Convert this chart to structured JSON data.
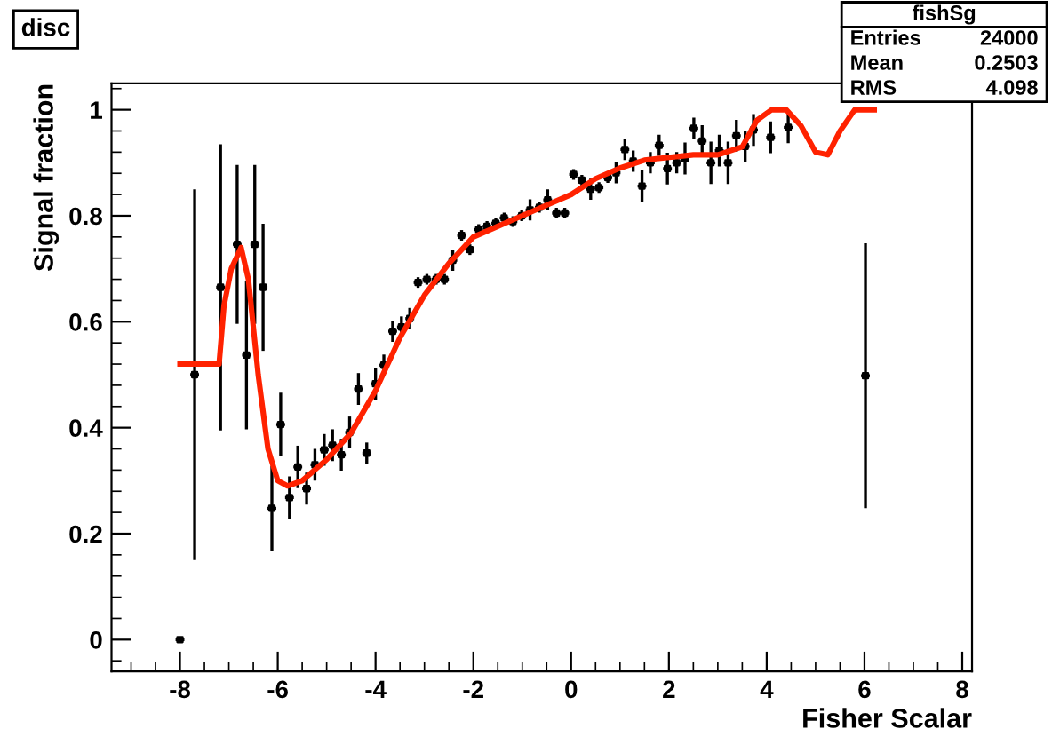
{
  "chart_data": {
    "type": "scatter",
    "title": "disc",
    "xlabel": "Fisher Scalar",
    "ylabel": "Signal fraction",
    "xlim": [
      -9.4,
      8.2
    ],
    "ylim": [
      -0.06,
      1.05
    ],
    "xticks": [
      -8,
      -6,
      -4,
      -2,
      0,
      2,
      4,
      6,
      8
    ],
    "yticks": [
      0,
      0.2,
      0.4,
      0.6,
      0.8,
      1
    ],
    "grid": false,
    "annotations": [
      "fishSg",
      "Entries 24000",
      "Mean 0.2503",
      "RMS 4.098"
    ],
    "series": [
      {
        "color": "#000000",
        "marker": "square",
        "x": [
          -8.0,
          -7.7,
          -7.17,
          -6.83,
          -6.64,
          -6.47,
          -6.3,
          -6.12,
          -5.94,
          -5.76,
          -5.59,
          -5.41,
          -5.24,
          -5.05,
          -4.88,
          -4.7,
          -4.53,
          -4.35,
          -4.18,
          -4.0,
          -3.83,
          -3.65,
          -3.47,
          -3.3,
          -3.13,
          -2.95,
          -2.76,
          -2.59,
          -2.42,
          -2.24,
          -2.07,
          -1.89,
          -1.72,
          -1.54,
          -1.37,
          -1.19,
          -1.01,
          -0.84,
          -0.65,
          -0.48,
          -0.3,
          -0.13,
          0.05,
          0.22,
          0.4,
          0.57,
          0.75,
          0.92,
          1.1,
          1.27,
          1.45,
          1.62,
          1.8,
          1.97,
          2.16,
          2.33,
          2.51,
          2.68,
          2.86,
          3.03,
          3.21,
          3.38,
          3.56,
          3.73,
          4.08,
          4.44,
          6.02
        ],
        "values": [
          0.0,
          0.5,
          0.665,
          0.746,
          0.537,
          0.746,
          0.665,
          0.248,
          0.406,
          0.268,
          0.326,
          0.285,
          0.33,
          0.358,
          0.367,
          0.349,
          0.391,
          0.473,
          0.352,
          0.483,
          0.518,
          0.582,
          0.59,
          0.606,
          0.674,
          0.68,
          0.68,
          0.68,
          0.716,
          0.763,
          0.736,
          0.774,
          0.78,
          0.786,
          0.796,
          0.789,
          0.8,
          0.811,
          0.816,
          0.83,
          0.805,
          0.805,
          0.878,
          0.867,
          0.85,
          0.853,
          0.872,
          0.881,
          0.925,
          0.903,
          0.856,
          0.9,
          0.933,
          0.889,
          0.9,
          0.908,
          0.965,
          0.941,
          0.9,
          0.923,
          0.9,
          0.951,
          0.931,
          0.962,
          0.948,
          0.967,
          0.498
        ],
        "errors": [
          null,
          0.35,
          0.27,
          0.15,
          0.14,
          0.15,
          0.12,
          0.08,
          0.06,
          0.04,
          0.04,
          0.03,
          0.03,
          0.03,
          0.03,
          0.03,
          0.03,
          0.03,
          0.02,
          0.03,
          0.02,
          0.02,
          0.02,
          0.02,
          0.01,
          0.01,
          0.01,
          0.01,
          0.02,
          0.01,
          0.01,
          0.01,
          0.01,
          0.01,
          0.01,
          0.01,
          0.01,
          0.02,
          0.01,
          0.02,
          0.01,
          0.01,
          0.01,
          0.01,
          0.02,
          0.01,
          0.01,
          0.02,
          0.02,
          0.02,
          0.03,
          0.02,
          0.02,
          0.03,
          0.02,
          0.03,
          0.02,
          0.03,
          0.04,
          0.03,
          0.04,
          0.03,
          0.03,
          0.03,
          0.03,
          0.03,
          0.25
        ],
        "xerrors": [
          0.09,
          0.09,
          0.09,
          0.09,
          0.09,
          0.09,
          0.09,
          0.09,
          0.09,
          0.09,
          0.09,
          0.09,
          0.09,
          0.09,
          0.09,
          0.09,
          0.09,
          0.09,
          0.09,
          0.09,
          0.09,
          0.09,
          0.09,
          0.09,
          0.09,
          0.09,
          0.09,
          0.09,
          0.09,
          0.09,
          0.09,
          0.09,
          0.09,
          0.09,
          0.09,
          0.09,
          0.09,
          0.09,
          0.09,
          0.09,
          0.09,
          0.09,
          0.09,
          0.09,
          0.09,
          0.09,
          0.09,
          0.09,
          0.09,
          0.09,
          0.09,
          0.09,
          0.09,
          0.09,
          0.09,
          0.09,
          0.09,
          0.09,
          0.09,
          0.09,
          0.09,
          0.09,
          0.09,
          0.09,
          0.09,
          0.09,
          0.09
        ]
      },
      {
        "type": "line",
        "color": "#ff2200",
        "line_style": "solid",
        "marker": "none",
        "x": [
          -8.0,
          -7.4,
          -7.2,
          -7.1,
          -6.95,
          -6.75,
          -6.6,
          -6.4,
          -6.2,
          -6.0,
          -5.8,
          -5.5,
          -5.0,
          -4.5,
          -4.0,
          -3.5,
          -3.0,
          -2.5,
          -2.0,
          -1.5,
          -1.0,
          -0.5,
          0.0,
          0.5,
          1.0,
          1.5,
          2.0,
          2.5,
          3.0,
          3.5,
          3.8,
          4.1,
          4.4,
          4.7,
          5.0,
          5.25,
          5.5,
          5.8,
          6.2
        ],
        "values": [
          0.52,
          0.52,
          0.52,
          0.63,
          0.7,
          0.74,
          0.68,
          0.5,
          0.36,
          0.3,
          0.29,
          0.3,
          0.34,
          0.39,
          0.47,
          0.57,
          0.65,
          0.71,
          0.76,
          0.78,
          0.8,
          0.82,
          0.84,
          0.87,
          0.89,
          0.905,
          0.91,
          0.915,
          0.915,
          0.93,
          0.98,
          1.0,
          1.0,
          0.97,
          0.92,
          0.915,
          0.96,
          1.0,
          1.0
        ]
      }
    ]
  }
}
